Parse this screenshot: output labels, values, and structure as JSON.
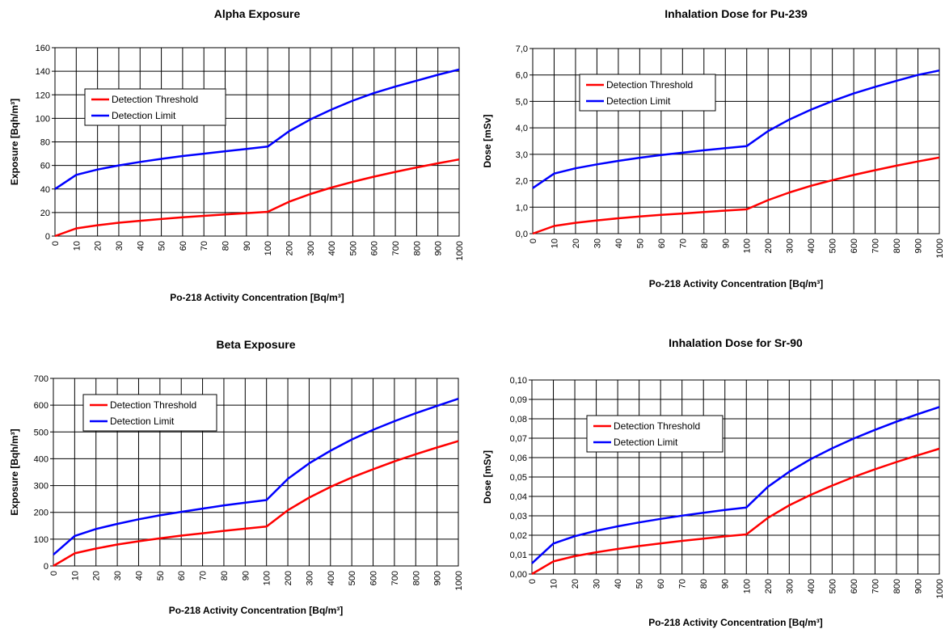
{
  "chart_data": [
    {
      "type": "line",
      "title": "Alpha Exposure",
      "xlabel": "Po-218 Activity Concentration [Bq/m³]",
      "ylabel": "Exposure [Bqh/m³]",
      "categories": [
        "0",
        "10",
        "20",
        "30",
        "40",
        "50",
        "60",
        "70",
        "80",
        "90",
        "100",
        "200",
        "300",
        "400",
        "500",
        "600",
        "700",
        "800",
        "900",
        "1000"
      ],
      "yticks": [
        "0",
        "20",
        "40",
        "60",
        "80",
        "100",
        "120",
        "140",
        "160"
      ],
      "ylim": [
        0,
        160
      ],
      "grid": true,
      "legend_position": "top-left",
      "series": [
        {
          "name": "Detection Threshold",
          "color": "#ff0000",
          "values": [
            0,
            6.5,
            9.2,
            11.3,
            13,
            14.5,
            15.9,
            17.2,
            18.4,
            19.5,
            20.6,
            29.1,
            35.7,
            41.2,
            46.1,
            50.5,
            54.5,
            58.3,
            61.8,
            65.1
          ]
        },
        {
          "name": "Detection Limit",
          "color": "#0000ff",
          "values": [
            40,
            52,
            56.5,
            60,
            63,
            65.6,
            68,
            70,
            72,
            74,
            76,
            89,
            99,
            107.5,
            115,
            121.5,
            127,
            132,
            137,
            141.5
          ]
        }
      ]
    },
    {
      "type": "line",
      "title": "Inhalation Dose for Pu-239",
      "xlabel": "Po-218 Activity Concentration [Bq/m³]",
      "ylabel": "Dose [mSv]",
      "categories": [
        "0",
        "10",
        "20",
        "30",
        "40",
        "50",
        "60",
        "70",
        "80",
        "90",
        "100",
        "200",
        "300",
        "400",
        "500",
        "600",
        "700",
        "800",
        "900",
        "1000"
      ],
      "yticks": [
        "0,0",
        "1,0",
        "2,0",
        "3,0",
        "4,0",
        "5,0",
        "6,0",
        "7,0"
      ],
      "ylim": [
        0,
        7
      ],
      "grid": true,
      "legend_position": "top-left",
      "series": [
        {
          "name": "Detection Threshold",
          "color": "#ff0000",
          "values": [
            0,
            0.29,
            0.41,
            0.5,
            0.58,
            0.65,
            0.71,
            0.76,
            0.82,
            0.87,
            0.92,
            1.27,
            1.56,
            1.81,
            2.02,
            2.22,
            2.4,
            2.57,
            2.73,
            2.88
          ]
        },
        {
          "name": "Detection Limit",
          "color": "#0000ff",
          "values": [
            1.72,
            2.27,
            2.47,
            2.62,
            2.75,
            2.87,
            2.97,
            3.06,
            3.15,
            3.23,
            3.31,
            3.88,
            4.32,
            4.69,
            5.01,
            5.3,
            5.55,
            5.78,
            6.0,
            6.17
          ]
        }
      ]
    },
    {
      "type": "line",
      "title": "Beta Exposure",
      "xlabel": "Po-218 Activity Concentration [Bq/m³]",
      "ylabel": "Exposure [Bqh/m³]",
      "categories": [
        "0",
        "10",
        "20",
        "30",
        "40",
        "50",
        "60",
        "70",
        "80",
        "90",
        "100",
        "200",
        "300",
        "400",
        "500",
        "600",
        "700",
        "800",
        "900",
        "1000"
      ],
      "yticks": [
        "0",
        "100",
        "200",
        "300",
        "400",
        "500",
        "600",
        "700"
      ],
      "ylim": [
        0,
        700
      ],
      "grid": true,
      "legend_position": "top-left",
      "series": [
        {
          "name": "Detection Threshold",
          "color": "#ff0000",
          "values": [
            0,
            47,
            65,
            80,
            92,
            103,
            113,
            122,
            131,
            139,
            147,
            208,
            255,
            295,
            330,
            361,
            390,
            417,
            442,
            466
          ]
        },
        {
          "name": "Detection Limit",
          "color": "#0000ff",
          "values": [
            42,
            112,
            138,
            157,
            174,
            189,
            202,
            214,
            226,
            236,
            246,
            325,
            383,
            430,
            472,
            508,
            540,
            570,
            597,
            624
          ]
        }
      ]
    },
    {
      "type": "line",
      "title": "Inhalation Dose for Sr-90",
      "xlabel": "Po-218 Activity Concentration [Bq/m³]",
      "ylabel": "Dose [mSv]",
      "categories": [
        "0",
        "10",
        "20",
        "30",
        "40",
        "50",
        "60",
        "70",
        "80",
        "90",
        "100",
        "200",
        "300",
        "400",
        "500",
        "600",
        "700",
        "800",
        "900",
        "1000"
      ],
      "yticks": [
        "0,00",
        "0,01",
        "0,02",
        "0,03",
        "0,04",
        "0,05",
        "0,06",
        "0,07",
        "0,08",
        "0,09",
        "0,10"
      ],
      "ylim": [
        0,
        0.1
      ],
      "grid": true,
      "legend_position": "top-left",
      "series": [
        {
          "name": "Detection Threshold",
          "color": "#ff0000",
          "values": [
            0,
            0.0065,
            0.0092,
            0.0112,
            0.0129,
            0.0144,
            0.0158,
            0.0171,
            0.0182,
            0.0194,
            0.0204,
            0.0289,
            0.0354,
            0.0408,
            0.0456,
            0.05,
            0.054,
            0.0577,
            0.0612,
            0.0646
          ]
        },
        {
          "name": "Detection Limit",
          "color": "#0000ff",
          "values": [
            0.0055,
            0.0157,
            0.0195,
            0.0223,
            0.0246,
            0.0266,
            0.0284,
            0.0301,
            0.0316,
            0.033,
            0.0343,
            0.0449,
            0.0527,
            0.0592,
            0.0648,
            0.0698,
            0.0743,
            0.0785,
            0.0824,
            0.0861
          ]
        }
      ]
    }
  ]
}
